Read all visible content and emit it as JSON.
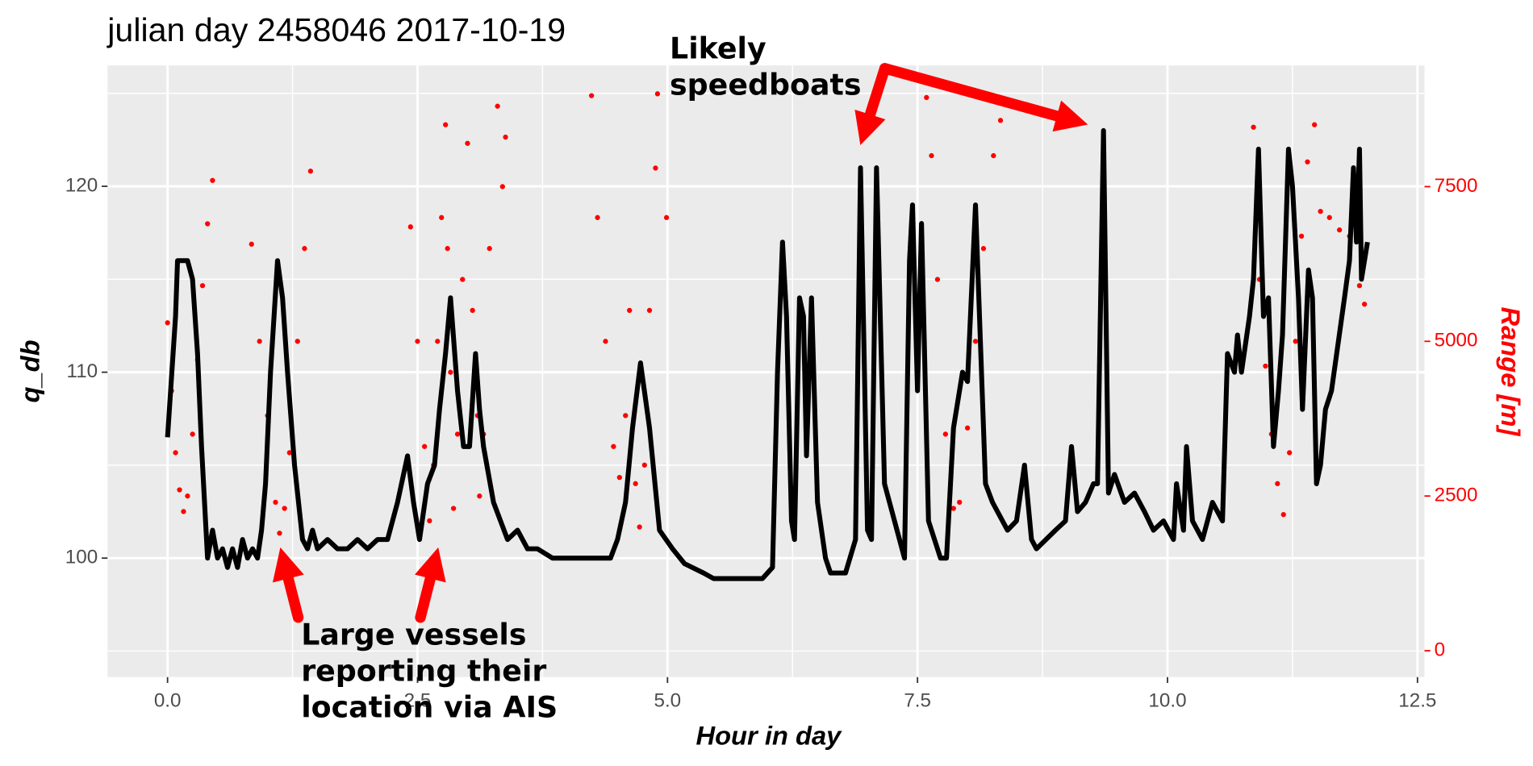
{
  "chart_data": {
    "type": "line",
    "title": "julian day 2458046 2017-10-19",
    "xlabel": "Hour in day",
    "ylabel": "q_db",
    "y2label": "Range [m]",
    "annotations": [
      [
        "Likely",
        "speedboats"
      ],
      [
        "Large vessels",
        "reporting their",
        "location via AIS"
      ]
    ],
    "xlim": [
      -0.6,
      12.57
    ],
    "ylim": [
      93.6,
      126.5
    ],
    "y2lim": [
      -426,
      9458
    ],
    "xticks": [
      {
        "value": 0,
        "label": "0.0"
      },
      2.5,
      {
        "value": 5,
        "label": "5.0"
      },
      7.5,
      {
        "value": 10,
        "label": "10.0"
      },
      12.5
    ],
    "x_minor_ticks": [
      1.25,
      3.75,
      6.25,
      8.75,
      11.25
    ],
    "yticks": [
      100,
      110,
      120
    ],
    "y_minor_ticks": [
      95,
      105,
      115,
      125
    ],
    "y2ticks": [
      0,
      2500,
      5000,
      7500
    ],
    "grid": true,
    "series": [
      {
        "type": "line",
        "color": "#000000",
        "x": [
          0,
          0.08,
          0.1,
          0.2,
          0.25,
          0.3,
          0.34,
          0.38,
          0.4,
          0.45,
          0.5,
          0.55,
          0.6,
          0.65,
          0.7,
          0.75,
          0.8,
          0.85,
          0.9,
          0.94,
          0.98,
          1.03,
          1.1,
          1.15,
          1.2,
          1.27,
          1.35,
          1.4,
          1.45,
          1.5,
          1.6,
          1.7,
          1.8,
          1.9,
          2.0,
          2.1,
          2.2,
          2.3,
          2.4,
          2.46,
          2.52,
          2.6,
          2.67,
          2.72,
          2.78,
          2.83,
          2.9,
          2.96,
          3.02,
          3.08,
          3.12,
          3.16,
          3.26,
          3.4,
          3.5,
          3.6,
          3.7,
          3.85,
          4.0,
          4.2,
          4.43,
          4.5,
          4.58,
          4.65,
          4.73,
          4.82,
          4.92,
          5.05,
          5.17,
          5.36,
          5.46,
          5.7,
          5.95,
          6.05,
          6.1,
          6.15,
          6.19,
          6.24,
          6.27,
          6.32,
          6.36,
          6.39,
          6.44,
          6.5,
          6.58,
          6.63,
          6.78,
          6.88,
          6.93,
          7.0,
          7.04,
          7.09,
          7.17,
          7.27,
          7.37,
          7.42,
          7.45,
          7.5,
          7.54,
          7.61,
          7.73,
          7.79,
          7.86,
          7.95,
          8.0,
          8.08,
          8.12,
          8.18,
          8.25,
          8.4,
          8.49,
          8.57,
          8.64,
          8.69,
          8.88,
          8.98,
          9.04,
          9.1,
          9.18,
          9.26,
          9.3,
          9.36,
          9.41,
          9.47,
          9.57,
          9.67,
          9.77,
          9.86,
          9.96,
          10.06,
          10.09,
          10.16,
          10.19,
          10.25,
          10.35,
          10.45,
          10.55,
          10.6,
          10.67,
          10.7,
          10.74,
          10.82,
          10.86,
          10.91,
          10.96,
          11.01,
          11.06,
          11.11,
          11.15,
          11.21,
          11.25,
          11.31,
          11.35,
          11.41,
          11.45,
          11.49,
          11.53,
          11.58,
          11.64,
          11.77,
          11.82,
          11.86,
          11.89,
          11.92,
          11.94,
          12.0
        ],
        "values": [
          106.5,
          113,
          116,
          116,
          115,
          111,
          106,
          102,
          100,
          101.5,
          100,
          100.5,
          99.5,
          100.5,
          99.5,
          101,
          100,
          100.5,
          100,
          101.5,
          104,
          110,
          116,
          114,
          110,
          105,
          101,
          100.5,
          101.5,
          100.5,
          101,
          100.5,
          100.5,
          101,
          100.5,
          101,
          101,
          103,
          105.5,
          103,
          101,
          104,
          105,
          108,
          111,
          114,
          109,
          106,
          106,
          111,
          108,
          106,
          103,
          101,
          101.5,
          100.5,
          100.5,
          100,
          100,
          100,
          100,
          101,
          103,
          107,
          110.5,
          107,
          101.5,
          100.5,
          99.7,
          99.2,
          98.9,
          98.9,
          98.9,
          99.5,
          110,
          117,
          113,
          102,
          101,
          114,
          113,
          105.5,
          114,
          103,
          100,
          99.2,
          99.2,
          101,
          121,
          101.5,
          101,
          121,
          104,
          102,
          100,
          116,
          119,
          109,
          118,
          102,
          100,
          100,
          107,
          110,
          109.5,
          119,
          113,
          104,
          103,
          101.5,
          102,
          105,
          101,
          100.5,
          101.5,
          102,
          106,
          102.5,
          103,
          104,
          104,
          123,
          103.5,
          104.5,
          103,
          103.5,
          102.5,
          101.5,
          102,
          101,
          104,
          101.5,
          106,
          102,
          101,
          103,
          102,
          111,
          110,
          112,
          110,
          113,
          115,
          122,
          113,
          114,
          106,
          109,
          112,
          122,
          120,
          114,
          108,
          115.5,
          114,
          104,
          105,
          108,
          109,
          114,
          116,
          121,
          117,
          122,
          115,
          117
        ]
      },
      {
        "type": "scatter",
        "axis": "y2",
        "color": "#ff0000",
        "x": [
          0,
          0.04,
          0.08,
          0.12,
          0.16,
          0.2,
          0.25,
          0.3,
          0.35,
          0.4,
          0.45,
          0.84,
          0.92,
          1.0,
          1.08,
          1.12,
          1.17,
          1.22,
          1.3,
          1.37,
          1.43,
          2.43,
          2.5,
          2.57,
          2.62,
          2.66,
          2.7,
          2.74,
          2.78,
          2.8,
          2.83,
          2.86,
          2.9,
          2.95,
          3.0,
          3.05,
          3.1,
          3.12,
          3.16,
          3.22,
          3.3,
          3.35,
          3.38,
          4.24,
          4.3,
          4.38,
          4.46,
          4.52,
          4.58,
          4.62,
          4.68,
          4.72,
          4.77,
          4.82,
          4.88,
          4.9,
          4.99,
          7.59,
          7.64,
          7.7,
          7.78,
          7.86,
          7.92,
          8.0,
          8.08,
          8.16,
          8.26,
          8.33,
          10.86,
          10.92,
          10.98,
          11.04,
          11.1,
          11.16,
          11.22,
          11.28,
          11.34,
          11.4,
          11.47,
          11.53,
          11.62,
          11.72,
          11.82,
          11.92,
          11.97
        ],
        "values": [
          5300,
          4200,
          3200,
          2600,
          2250,
          2500,
          3500,
          4700,
          5900,
          6900,
          7600,
          6570,
          5000,
          3800,
          2400,
          1900,
          2300,
          3200,
          5000,
          6500,
          7750,
          6850,
          5000,
          3300,
          2100,
          3000,
          5000,
          7000,
          8500,
          6500,
          4500,
          2300,
          3500,
          6000,
          8200,
          5500,
          3800,
          2500,
          3500,
          6500,
          8800,
          7500,
          8300,
          8970,
          7000,
          5000,
          3300,
          2800,
          3800,
          5500,
          2700,
          2000,
          3000,
          5500,
          7800,
          9000,
          7000,
          8940,
          8000,
          6000,
          3500,
          2300,
          2400,
          3600,
          5000,
          6500,
          8000,
          8570,
          8460,
          6000,
          4600,
          3500,
          2700,
          2200,
          3200,
          5000,
          6700,
          7900,
          8500,
          7100,
          7000,
          6800,
          6700,
          5900,
          5600
        ]
      }
    ]
  }
}
